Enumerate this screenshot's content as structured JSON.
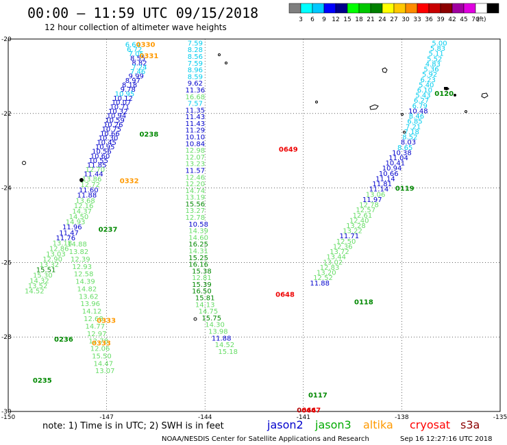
{
  "header": {
    "title": "00:00 – 11:59 UTC 09/15/2018",
    "subtitle": "12 hour collection of altimeter wave heights"
  },
  "colorbar": {
    "unit_label": "(ft)",
    "colors": [
      "#7f7f7f",
      "#00ffff",
      "#00c8ff",
      "#0000ff",
      "#00008b",
      "#00ff00",
      "#00c800",
      "#008000",
      "#ffff00",
      "#ffc800",
      "#ff8c00",
      "#ff0000",
      "#c80000",
      "#8b0000",
      "#a000a0",
      "#e000e0",
      "#ffffff",
      "#000000"
    ],
    "labels": [
      "3",
      "6",
      "9",
      "12",
      "15",
      "18",
      "21",
      "24",
      "27",
      "30",
      "33",
      "36",
      "39",
      "42",
      "45",
      "70"
    ]
  },
  "footer": {
    "note": "note: 1) Time is in UTC; 2) SWH is in feet",
    "satellites": [
      {
        "name": "jason2",
        "color": "#0000cc"
      },
      {
        "name": "jason3",
        "color": "#00aa00"
      },
      {
        "name": "altika",
        "color": "#ff9900"
      },
      {
        "name": "cryosat",
        "color": "#ff0000"
      },
      {
        "name": "s3a",
        "color": "#8b0000"
      }
    ],
    "credit": "NOAA/NESDIS Center for Satellite Applications and Research",
    "timestamp": "Sep 16 12:27:16 UTC 2018"
  },
  "chart_data": {
    "type": "scatter",
    "title": "00:00 – 11:59 UTC 09/15/2018",
    "subtitle": "12 hour collection of altimeter wave heights",
    "xlabel": "",
    "ylabel": "",
    "xlim": [
      -150,
      -135
    ],
    "ylim": [
      -30,
      -20
    ],
    "x_ticks": [
      "-150",
      "-147",
      "-144",
      "-141",
      "-138",
      "-135"
    ],
    "y_ticks": [
      "-20",
      "-22",
      "-24",
      "-26",
      "-28",
      "-30"
    ],
    "grid": "dashed",
    "colors": {
      "cyan": "#00ccee",
      "lightgreen": "#66dd66",
      "blue": "#0000cc",
      "green": "#008800",
      "orange": "#ff9900",
      "red": "#ee0000",
      "darkred": "#b00000",
      "black": "#000000"
    },
    "series": [
      {
        "name": "track-1",
        "x": [
          -146.2,
          -146.15,
          -146.1,
          -146.05,
          -146.0,
          -146.0,
          -146.05,
          -146.1,
          -146.2,
          -146.3,
          -146.35,
          -146.45,
          -146.5,
          -146.55,
          -146.6,
          -146.65,
          -146.7,
          -146.75,
          -146.8,
          -146.85,
          -146.9,
          -146.95,
          -147.0,
          -147.05,
          -147.15,
          -147.2,
          -147.25,
          -147.3,
          -147.35,
          -147.4,
          -147.45,
          -147.5,
          -147.55,
          -147.6,
          -147.65,
          -147.7,
          -147.75,
          -147.85,
          -147.95,
          -148.05,
          -148.15,
          -148.25,
          -148.35,
          -148.45,
          -148.55,
          -148.65,
          -148.75,
          -148.85,
          -148.95,
          -149.05,
          -149.1,
          -149.2
        ],
        "y": [
          -20.14,
          -20.27,
          -20.39,
          -20.51,
          -20.63,
          -20.74,
          -20.86,
          -20.98,
          -21.1,
          -21.22,
          -21.34,
          -21.46,
          -21.58,
          -21.69,
          -21.81,
          -21.93,
          -22.05,
          -22.17,
          -22.29,
          -22.41,
          -22.53,
          -22.65,
          -22.77,
          -22.89,
          -23.01,
          -23.13,
          -23.25,
          -23.37,
          -23.49,
          -23.61,
          -23.75,
          -23.9,
          -24.04,
          -24.18,
          -24.33,
          -24.47,
          -24.61,
          -24.76,
          -24.9,
          -25.04,
          -25.19,
          -25.33,
          -25.47,
          -25.62,
          -25.76,
          -25.9,
          -26.05,
          -26.19,
          -26.33,
          -26.48,
          -26.62,
          -26.76
        ],
        "labels": [
          "6.64",
          "6.72",
          "7.05",
          "8.55",
          "8.82",
          "7.24",
          "7.46",
          "9.99",
          "8.97",
          "8.18",
          "9.78",
          "10.95",
          "10.12",
          "10.07",
          "10.71",
          "10.32",
          "10.94",
          "10.59",
          "10.26",
          "10.75",
          "10.66",
          "10.30",
          "10.45",
          "10.95",
          "10.56",
          "10.60",
          "10.55",
          "11.85",
          "12.70",
          "11.44",
          "13.86",
          "12.72",
          "11.60",
          "11.88",
          "13.68",
          "12.16",
          "14.37",
          "14.50",
          "14.93",
          "11.96",
          "11.47",
          "11.76",
          "13.18",
          "12.86",
          "13.03",
          "12.90",
          "13.32",
          "15.51",
          "15.30",
          "14.32",
          "13.52",
          "14.52"
        ],
        "label_colors": [
          "cyan",
          "cyan",
          "cyan",
          "blue",
          "blue",
          "cyan",
          "cyan",
          "blue",
          "blue",
          "blue",
          "blue",
          "cyan",
          "blue",
          "blue",
          "blue",
          "blue",
          "blue",
          "blue",
          "blue",
          "blue",
          "blue",
          "blue",
          "blue",
          "blue",
          "blue",
          "blue",
          "blue",
          "blue",
          "lightgreen",
          "blue",
          "lightgreen",
          "lightgreen",
          "blue",
          "blue",
          "lightgreen",
          "lightgreen",
          "lightgreen",
          "lightgreen",
          "lightgreen",
          "blue",
          "blue",
          "blue",
          "lightgreen",
          "lightgreen",
          "lightgreen",
          "lightgreen",
          "lightgreen",
          "green",
          "lightgreen",
          "lightgreen",
          "lightgreen",
          "lightgreen"
        ]
      },
      {
        "name": "track-1b",
        "x": [
          -147.9,
          -147.85,
          -147.8,
          -147.75,
          -147.7,
          -147.65,
          -147.6,
          -147.55,
          -147.5,
          -147.45,
          -147.4,
          -147.35,
          -147.3,
          -147.25,
          -147.2,
          -147.15,
          -147.1,
          -147.05
        ],
        "y": [
          -25.5,
          -25.7,
          -25.9,
          -26.1,
          -26.3,
          -26.5,
          -26.7,
          -26.9,
          -27.1,
          -27.3,
          -27.5,
          -27.7,
          -27.9,
          -28.1,
          -28.3,
          -28.5,
          -28.7,
          -28.9
        ],
        "labels": [
          "14.88",
          "13.82",
          "12.39",
          "12.93",
          "12.58",
          "14.39",
          "14.82",
          "13.62",
          "13.96",
          "14.12",
          "12.68",
          "14.77",
          "12.97",
          "12.78",
          "12.06",
          "15.50",
          "14.47",
          "13.07"
        ],
        "label_colors": [
          "lightgreen",
          "lightgreen",
          "lightgreen",
          "lightgreen",
          "lightgreen",
          "lightgreen",
          "lightgreen",
          "lightgreen",
          "lightgreen",
          "lightgreen",
          "lightgreen",
          "lightgreen",
          "lightgreen",
          "lightgreen",
          "lightgreen",
          "lightgreen",
          "lightgreen",
          "lightgreen"
        ]
      },
      {
        "name": "track-2",
        "x": [
          -144.3,
          -144.3,
          -144.3,
          -144.3,
          -144.3,
          -144.3,
          -144.3,
          -144.3,
          -144.3,
          -144.3,
          -144.3,
          -144.3,
          -144.3,
          -144.3,
          -144.3,
          -144.3,
          -144.3,
          -144.3,
          -144.3,
          -144.3,
          -144.3,
          -144.3,
          -144.3,
          -144.3,
          -144.3,
          -144.3,
          -144.3,
          -144.2,
          -144.2,
          -144.2,
          -144.2,
          -144.2,
          -144.2,
          -144.2,
          -144.1,
          -144.1,
          -144.1,
          -144.1,
          -144.0,
          -144.0,
          -143.9,
          -143.8,
          -143.7,
          -143.6,
          -143.5,
          -143.4,
          -143.3
        ],
        "y": [
          -20.1,
          -20.28,
          -20.46,
          -20.64,
          -20.82,
          -21.0,
          -21.18,
          -21.36,
          -21.54,
          -21.72,
          -21.9,
          -22.08,
          -22.26,
          -22.44,
          -22.62,
          -22.8,
          -22.98,
          -23.16,
          -23.34,
          -23.52,
          -23.7,
          -23.88,
          -24.06,
          -24.24,
          -24.42,
          -24.6,
          -24.78,
          -24.96,
          -25.14,
          -25.32,
          -25.5,
          -25.68,
          -25.86,
          -26.04,
          -26.22,
          -26.4,
          -26.58,
          -26.76,
          -26.94,
          -27.12,
          -27.3,
          -27.48,
          -27.66,
          -27.84,
          -28.02,
          -28.2,
          -28.38
        ],
        "labels": [
          "7.59",
          "8.28",
          "8.56",
          "7.59",
          "8.96",
          "8.59",
          "9.62",
          "11.36",
          "16.68",
          "7.57",
          "11.35",
          "11.43",
          "11.43",
          "11.29",
          "10.10",
          "10.84",
          "12.98",
          "12.07",
          "13.23",
          "11.57",
          "12.46",
          "12.20",
          "14.74",
          "13.19",
          "15.56",
          "13.27",
          "12.78",
          "10.58",
          "14.39",
          "14.60",
          "16.25",
          "14.31",
          "15.25",
          "16.16",
          "15.38",
          "12.81",
          "15.39",
          "16.50",
          "15.81",
          "14.13",
          "14.75",
          "15.75",
          "14.30",
          "13.98",
          "11.88",
          "14.52",
          "15.18"
        ],
        "label_colors": [
          "cyan",
          "cyan",
          "cyan",
          "cyan",
          "cyan",
          "cyan",
          "blue",
          "blue",
          "lightgreen",
          "cyan",
          "blue",
          "blue",
          "blue",
          "blue",
          "blue",
          "blue",
          "lightgreen",
          "lightgreen",
          "lightgreen",
          "blue",
          "lightgreen",
          "lightgreen",
          "lightgreen",
          "lightgreen",
          "green",
          "lightgreen",
          "lightgreen",
          "blue",
          "lightgreen",
          "lightgreen",
          "green",
          "lightgreen",
          "green",
          "green",
          "green",
          "lightgreen",
          "green",
          "green",
          "green",
          "lightgreen",
          "lightgreen",
          "green",
          "lightgreen",
          "lightgreen",
          "blue",
          "lightgreen",
          "lightgreen"
        ]
      },
      {
        "name": "track-3",
        "x": [
          -136.85,
          -136.9,
          -136.95,
          -137.0,
          -137.05,
          -137.1,
          -137.15,
          -137.2,
          -137.25,
          -137.3,
          -137.35,
          -137.4,
          -137.45,
          -137.5,
          -137.55,
          -137.6,
          -137.65,
          -137.7,
          -137.75,
          -137.8,
          -137.9,
          -138.0,
          -138.1,
          -138.2,
          -138.3,
          -138.4,
          -138.5,
          -138.6,
          -138.7,
          -138.8,
          -138.9,
          -139.0,
          -139.1,
          -139.2,
          -139.3,
          -139.4,
          -139.5,
          -139.6,
          -139.7,
          -139.8,
          -139.9,
          -140.0,
          -140.1,
          -140.2,
          -140.3,
          -140.4,
          -140.5
        ],
        "y": [
          -20.1,
          -20.24,
          -20.38,
          -20.52,
          -20.66,
          -20.8,
          -20.94,
          -21.08,
          -21.22,
          -21.36,
          -21.5,
          -21.64,
          -21.78,
          -21.92,
          -22.06,
          -22.2,
          -22.34,
          -22.48,
          -22.62,
          -22.76,
          -22.9,
          -23.04,
          -23.18,
          -23.32,
          -23.46,
          -23.6,
          -23.74,
          -23.88,
          -24.02,
          -24.16,
          -24.3,
          -24.44,
          -24.58,
          -24.72,
          -24.86,
          -25.0,
          -25.14,
          -25.28,
          -25.42,
          -25.56,
          -25.7,
          -25.84,
          -25.98,
          -26.12,
          -26.26,
          -26.4,
          -26.54
        ],
        "labels": [
          "5.00",
          "5.83",
          "5.11",
          "5.52",
          "4.83",
          "5.36",
          "5.92",
          "6.23",
          "5.40",
          "6.10",
          "5.43",
          "6.27",
          "6.79",
          "10.48",
          "8.46",
          "6.85",
          "7.21",
          "7.18",
          "8.52",
          "8.03",
          "8.65",
          "10.38",
          "11.04",
          "10.41",
          "10.94",
          "10.66",
          "11.14",
          "11.81",
          "11.14",
          "13.06",
          "11.97",
          "12.78",
          "12.57",
          "12.61",
          "12.40",
          "13.28",
          "13.22",
          "11.71",
          "12.50",
          "12.36",
          "13.72",
          "13.44",
          "13.02",
          "12.83",
          "13.20",
          "12.52",
          "11.88"
        ],
        "label_colors": [
          "cyan",
          "cyan",
          "cyan",
          "cyan",
          "cyan",
          "cyan",
          "cyan",
          "cyan",
          "cyan",
          "cyan",
          "cyan",
          "cyan",
          "cyan",
          "blue",
          "cyan",
          "cyan",
          "cyan",
          "cyan",
          "cyan",
          "blue",
          "cyan",
          "blue",
          "blue",
          "blue",
          "blue",
          "blue",
          "blue",
          "blue",
          "blue",
          "lightgreen",
          "blue",
          "lightgreen",
          "lightgreen",
          "lightgreen",
          "lightgreen",
          "lightgreen",
          "lightgreen",
          "blue",
          "lightgreen",
          "lightgreen",
          "lightgreen",
          "lightgreen",
          "lightgreen",
          "lightgreen",
          "lightgreen",
          "lightgreen",
          "blue"
        ]
      }
    ],
    "annotations": [
      {
        "text": "0330",
        "x": -146.1,
        "y": -20.14,
        "color": "orange"
      },
      {
        "text": "0331",
        "x": -146.0,
        "y": -20.44,
        "color": "orange"
      },
      {
        "text": "0238",
        "x": -146.0,
        "y": -22.55,
        "color": "green"
      },
      {
        "text": "0332",
        "x": -146.6,
        "y": -23.8,
        "color": "orange"
      },
      {
        "text": "0237",
        "x": -147.25,
        "y": -25.1,
        "color": "green"
      },
      {
        "text": "0333",
        "x": -147.3,
        "y": -27.55,
        "color": "orange"
      },
      {
        "text": "0333",
        "x": -147.45,
        "y": -28.15,
        "color": "orange"
      },
      {
        "text": "0236",
        "x": -148.6,
        "y": -28.05,
        "color": "green"
      },
      {
        "text": "0235",
        "x": -149.25,
        "y": -29.15,
        "color": "green"
      },
      {
        "text": "0649",
        "x": -141.75,
        "y": -22.95,
        "color": "red"
      },
      {
        "text": "0648",
        "x": -141.85,
        "y": -26.85,
        "color": "red"
      },
      {
        "text": "0120",
        "x": -137.0,
        "y": -21.45,
        "color": "green"
      },
      {
        "text": "0119",
        "x": -138.2,
        "y": -24.0,
        "color": "green"
      },
      {
        "text": "0118",
        "x": -139.45,
        "y": -27.05,
        "color": "green"
      },
      {
        "text": "0117",
        "x": -140.85,
        "y": -29.55,
        "color": "green"
      },
      {
        "text": "0646",
        "x": -141.2,
        "y": -29.95,
        "color": "darkred"
      },
      {
        "text": "0647",
        "x": -141.05,
        "y": -29.95,
        "color": "red"
      }
    ]
  }
}
